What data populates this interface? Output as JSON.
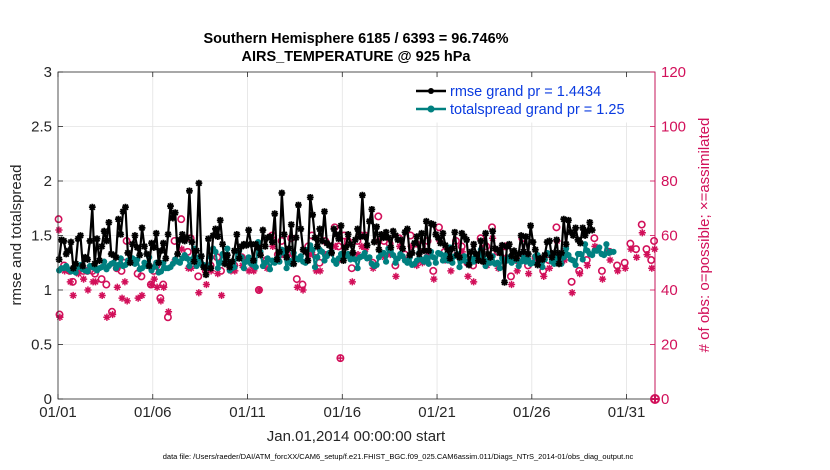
{
  "chart_data": {
    "type": "line",
    "title": "Southern Hemisphere 6185 / 6393 = 96.746%",
    "subtitle": "AIRS_TEMPERATURE @ 925 hPa",
    "xlabel": "Jan.01,2014 00:00:00 start",
    "ylabel": "rmse and totalspread",
    "ylabel_right": "# of obs: o=possible; ×=assimilated",
    "xlim": [
      0,
      31.5
    ],
    "ylim": [
      0,
      3
    ],
    "ylim_right": [
      0,
      120
    ],
    "x_ticks": [
      0,
      5,
      10,
      15,
      20,
      25,
      30
    ],
    "x_tick_labels": [
      "01/01",
      "01/06",
      "01/11",
      "01/16",
      "01/21",
      "01/26",
      "01/31"
    ],
    "y_ticks": [
      0,
      0.5,
      1,
      1.5,
      2,
      2.5,
      3
    ],
    "y_tick_labels": [
      "0",
      "0.5",
      "1",
      "1.5",
      "2",
      "2.5",
      "3"
    ],
    "y_ticks_right": [
      0,
      20,
      40,
      60,
      80,
      100,
      120
    ],
    "y_tick_labels_right": [
      "0",
      "20",
      "40",
      "60",
      "80",
      "100",
      "120"
    ],
    "grid": true,
    "legend_position": "top-right",
    "dt_days": 0.125,
    "series": [
      {
        "name": "rmse grand pr = 1.4434",
        "axis": "left",
        "color": "#000000",
        "marker": "asterisk",
        "values": [
          1.28,
          1.46,
          1.45,
          1.33,
          1.36,
          1.44,
          1.2,
          1.24,
          1.47,
          1.5,
          1.22,
          1.3,
          1.28,
          1.45,
          1.76,
          1.24,
          1.47,
          1.27,
          1.4,
          1.54,
          1.45,
          1.62,
          1.33,
          1.32,
          1.3,
          1.65,
          1.51,
          1.72,
          1.76,
          1.34,
          1.25,
          1.42,
          1.5,
          1.39,
          1.32,
          1.57,
          1.4,
          1.33,
          1.22,
          1.43,
          1.39,
          1.52,
          1.25,
          1.36,
          1.43,
          1.29,
          1.51,
          1.77,
          1.66,
          1.71,
          1.33,
          1.46,
          1.51,
          1.45,
          1.48,
          1.91,
          1.44,
          1.26,
          1.36,
          1.98,
          1.31,
          1.21,
          1.14,
          1.47,
          1.2,
          1.5,
          1.56,
          1.49,
          1.64,
          1.42,
          1.24,
          1.32,
          1.21,
          1.26,
          1.36,
          1.51,
          1.29,
          1.4,
          1.42,
          1.41,
          1.55,
          1.42,
          1.27,
          1.42,
          1.39,
          1.32,
          1.55,
          1.4,
          1.48,
          1.49,
          1.44,
          1.7,
          1.28,
          1.35,
          1.89,
          1.51,
          1.3,
          1.38,
          1.6,
          1.24,
          1.48,
          1.78,
          1.56,
          1.37,
          1.35,
          1.27,
          1.85,
          1.69,
          1.48,
          1.4,
          1.56,
          1.45,
          1.72,
          1.43,
          1.41,
          1.34,
          1.56,
          1.51,
          1.47,
          1.59,
          1.27,
          1.39,
          1.51,
          1.42,
          1.34,
          1.46,
          1.56,
          1.49,
          1.87,
          1.49,
          1.41,
          1.63,
          1.74,
          1.44,
          1.58,
          1.37,
          1.51,
          1.48,
          1.53,
          1.48,
          1.39,
          1.54,
          1.5,
          1.46,
          1.46,
          1.38,
          1.53,
          1.56,
          1.32,
          1.34,
          1.43,
          1.49,
          1.33,
          1.52,
          1.36,
          1.63,
          1.36,
          1.61,
          1.6,
          1.51,
          1.48,
          1.43,
          1.52,
          1.41,
          1.37,
          1.29,
          1.38,
          1.53,
          1.32,
          1.3,
          1.52,
          1.49,
          1.46,
          1.23,
          1.35,
          1.42,
          1.33,
          1.27,
          1.45,
          1.26,
          1.52,
          1.33,
          1.3,
          1.54,
          1.38,
          1.37,
          1.34,
          1.41,
          1.07,
          1.4,
          1.42,
          1.31,
          1.36,
          1.29,
          1.33,
          1.5,
          1.35,
          1.49,
          1.33,
          1.59,
          1.44,
          1.37,
          1.23,
          1.29,
          1.28,
          1.32,
          1.44,
          1.45,
          1.3,
          1.34,
          1.46,
          1.24,
          1.34,
          1.65,
          1.42,
          1.64,
          1.53,
          1.5,
          1.57,
          1.46,
          1.43,
          1.57,
          1.5,
          1.54,
          1.62,
          1.55
        ]
      },
      {
        "name": "totalspread grand pr = 1.25",
        "axis": "left",
        "color": "#008080",
        "marker": "dot",
        "values": [
          1.18,
          1.2,
          1.2,
          1.22,
          1.19,
          1.17,
          1.18,
          1.16,
          1.21,
          1.23,
          1.19,
          1.18,
          1.17,
          1.22,
          1.21,
          1.2,
          1.18,
          1.2,
          1.21,
          1.26,
          1.19,
          1.22,
          1.24,
          1.25,
          1.2,
          1.23,
          1.29,
          1.22,
          1.23,
          1.27,
          1.28,
          1.29,
          1.24,
          1.28,
          1.19,
          1.2,
          1.25,
          1.22,
          1.3,
          1.18,
          1.21,
          1.25,
          1.16,
          1.17,
          1.25,
          1.2,
          1.2,
          1.21,
          1.24,
          1.28,
          1.26,
          1.25,
          1.29,
          1.32,
          1.29,
          1.22,
          1.28,
          1.38,
          1.22,
          1.3,
          1.24,
          1.23,
          1.2,
          1.21,
          1.3,
          1.38,
          1.35,
          1.2,
          1.25,
          1.33,
          1.26,
          1.38,
          1.18,
          1.2,
          1.21,
          1.35,
          1.36,
          1.3,
          1.2,
          1.26,
          1.3,
          1.24,
          1.23,
          1.21,
          1.44,
          1.35,
          1.22,
          1.25,
          1.29,
          1.19,
          1.27,
          1.25,
          1.29,
          1.26,
          1.37,
          1.34,
          1.2,
          1.27,
          1.24,
          1.34,
          1.29,
          1.28,
          1.31,
          1.26,
          1.25,
          1.37,
          1.41,
          1.37,
          1.21,
          1.3,
          1.37,
          1.35,
          1.27,
          1.31,
          1.34,
          1.35,
          1.27,
          1.24,
          1.29,
          1.33,
          1.3,
          1.31,
          1.33,
          1.28,
          1.29,
          1.28,
          1.2,
          1.3,
          1.31,
          1.34,
          1.29,
          1.3,
          1.24,
          1.22,
          1.23,
          1.3,
          1.33,
          1.34,
          1.26,
          1.38,
          1.36,
          1.32,
          1.25,
          1.29,
          1.33,
          1.31,
          1.27,
          1.25,
          1.3,
          1.23,
          1.24,
          1.27,
          1.34,
          1.28,
          1.26,
          1.3,
          1.24,
          1.35,
          1.3,
          1.25,
          1.34,
          1.33,
          1.27,
          1.32,
          1.27,
          1.39,
          1.25,
          1.31,
          1.33,
          1.21,
          1.27,
          1.31,
          1.26,
          1.24,
          1.29,
          1.26,
          1.32,
          1.32,
          1.37,
          1.3,
          1.22,
          1.27,
          1.25,
          1.31,
          1.24,
          1.25,
          1.2,
          1.29,
          1.26,
          1.27,
          1.3,
          1.25,
          1.27,
          1.29,
          1.22,
          1.26,
          1.3,
          1.26,
          1.28,
          1.24,
          1.25,
          1.31,
          1.32,
          1.28,
          1.21,
          1.28,
          1.34,
          1.33,
          1.26,
          1.24,
          1.29,
          1.31,
          1.24,
          1.3,
          1.38,
          1.32,
          1.28,
          1.27,
          1.23,
          1.33,
          1.33,
          1.28,
          1.42,
          1.36,
          1.33,
          1.32,
          1.36,
          1.36,
          1.39,
          1.33,
          1.32,
          1.42,
          1.34,
          1.35,
          1.35
        ]
      },
      {
        "name": "possible",
        "axis": "right",
        "color": "#d2105a",
        "marker": "circle",
        "x": [
          0.03,
          0.08,
          0.32,
          0.62,
          0.78,
          1.05,
          1.32,
          1.55,
          1.82,
          1.95,
          2.3,
          2.55,
          2.85,
          3.1,
          3.35,
          3.5,
          3.62,
          4.2,
          4.4,
          4.9,
          5.05,
          5.2,
          5.4,
          5.55,
          5.8,
          6.15,
          6.5,
          6.85,
          7.0,
          7.4,
          7.8,
          8.05,
          8.4,
          8.6,
          9.1,
          9.3,
          9.7,
          10.05,
          10.3,
          10.6,
          11.0,
          11.3,
          11.6,
          11.8,
          12.3,
          12.6,
          12.9,
          13.2,
          13.4,
          13.6,
          13.8,
          14.1,
          14.6,
          14.8,
          15.1,
          15.3,
          15.5,
          15.8,
          16.0,
          16.2,
          16.6,
          16.9,
          17.2,
          17.5,
          17.8,
          18.0,
          18.3,
          18.6,
          18.9,
          19.2,
          19.5,
          19.8,
          20.1,
          20.4,
          20.7,
          21.0,
          21.3,
          21.6,
          21.9,
          22.3,
          22.6,
          22.9,
          23.2,
          23.6,
          23.9,
          24.2,
          24.5,
          24.8,
          25.2,
          25.6,
          25.9,
          26.3,
          26.7,
          27.1,
          27.5,
          27.9,
          28.3,
          28.7,
          29.1,
          29.5,
          29.9,
          30.2,
          30.5,
          30.8,
          31.05,
          31.3,
          31.45
        ],
        "values": [
          66,
          31,
          49,
          47,
          43,
          47,
          47,
          47,
          47,
          46,
          44,
          42,
          32,
          48,
          47,
          50,
          58,
          46,
          45,
          42,
          47,
          49,
          37,
          42,
          30,
          58,
          66,
          54,
          59,
          45,
          47,
          49,
          52,
          47,
          48,
          49,
          52,
          51,
          49,
          40,
          51,
          60,
          53,
          58,
          59,
          44,
          42,
          56,
          60,
          54,
          50,
          58,
          63,
          56,
          60,
          58,
          48,
          58,
          60,
          60,
          50,
          67,
          58,
          57,
          49,
          59,
          53,
          60,
          57,
          56,
          58,
          47,
          63,
          54,
          51,
          58,
          56,
          50,
          49,
          59,
          56,
          63,
          54,
          56,
          45,
          51,
          59,
          49,
          52,
          47,
          51,
          63,
          54,
          43,
          47,
          51,
          59,
          47,
          54,
          49,
          50,
          57,
          55,
          64,
          55,
          51,
          58
        ]
      },
      {
        "name": "assimilated",
        "axis": "right",
        "color": "#d2105a",
        "marker": "cross",
        "x": [
          0.05,
          0.1,
          0.35,
          0.65,
          0.8,
          1.08,
          1.35,
          1.58,
          1.85,
          1.98,
          2.33,
          2.58,
          2.88,
          3.13,
          3.38,
          3.53,
          3.65,
          4.23,
          4.43,
          4.93,
          5.08,
          5.23,
          5.43,
          5.58,
          5.83,
          6.18,
          6.53,
          6.88,
          7.03,
          7.43,
          7.83,
          8.08,
          8.43,
          8.63,
          9.13,
          9.33,
          9.73,
          10.08,
          10.33,
          10.63,
          11.03,
          11.33,
          11.63,
          11.83,
          12.33,
          12.63,
          12.93,
          13.23,
          13.43,
          13.63,
          13.83,
          14.13,
          14.63,
          14.83,
          15.13,
          15.33,
          15.53,
          15.83,
          16.03,
          16.23,
          16.63,
          16.93,
          17.23,
          17.53,
          17.83,
          18.03,
          18.33,
          18.63,
          18.93,
          19.23,
          19.53,
          19.83,
          20.13,
          20.43,
          20.73,
          21.03,
          21.33,
          21.63,
          21.93,
          22.33,
          22.63,
          22.93,
          23.23,
          23.63,
          23.93,
          24.23,
          24.53,
          24.83,
          25.23,
          25.63,
          25.93,
          26.33,
          26.73,
          27.13,
          27.53,
          27.93,
          28.33,
          28.73,
          29.13,
          29.53,
          29.93,
          30.23,
          30.53,
          30.83,
          31.08,
          31.33,
          31.48
        ],
        "values": [
          62,
          30,
          47,
          43,
          38,
          46,
          44,
          40,
          43,
          43,
          38,
          30,
          31,
          41,
          37,
          43,
          36,
          37,
          38,
          42,
          44,
          41,
          36,
          41,
          32,
          51,
          55,
          48,
          48,
          39,
          42,
          47,
          46,
          38,
          47,
          47,
          49,
          47,
          47,
          40,
          48,
          56,
          51,
          53,
          53,
          41,
          40,
          53,
          53,
          47,
          47,
          53,
          56,
          51,
          56,
          53,
          43,
          53,
          56,
          55,
          48,
          58,
          52,
          53,
          45,
          56,
          51,
          56,
          49,
          50,
          53,
          44,
          58,
          51,
          47,
          53,
          54,
          45,
          43,
          53,
          49,
          59,
          48,
          52,
          42,
          47,
          53,
          46,
          51,
          45,
          48,
          58,
          51,
          39,
          46,
          49,
          56,
          44,
          51,
          47,
          48,
          55,
          52,
          61,
          53,
          48,
          55
        ]
      }
    ],
    "annotations": {
      "isolated_low_point_x": 14.9,
      "isolated_low_point_value": 15,
      "endpoint_zero_value": 0
    },
    "footer": "data file: /Users/raeder/DAI/ATM_forcXX/CAM6_setup/f.e21.FHIST_BGC.f09_025.CAM6assim.011/Diags_NTrS_2014-01/obs_diag_output.nc"
  }
}
